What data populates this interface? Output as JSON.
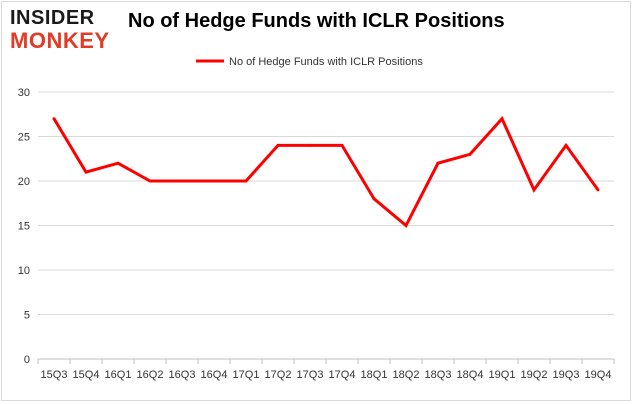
{
  "brand": {
    "logo_line1": "INSIDER",
    "logo_line2": "MONKEY",
    "logo_color_top": "#1a1a1a",
    "logo_color_bottom": "#e23b27"
  },
  "chart_data": {
    "type": "line",
    "title": "No of Hedge Funds with ICLR Positions",
    "categories": [
      "15Q3",
      "15Q4",
      "16Q1",
      "16Q2",
      "16Q3",
      "16Q4",
      "17Q1",
      "17Q2",
      "17Q3",
      "17Q4",
      "18Q1",
      "18Q2",
      "18Q3",
      "18Q4",
      "19Q1",
      "19Q2",
      "19Q3",
      "19Q4"
    ],
    "series": [
      {
        "name": "No of Hedge Funds with ICLR Positions",
        "color": "#ff0000",
        "values": [
          27,
          21,
          22,
          20,
          20,
          20,
          20,
          24,
          24,
          24,
          18,
          15,
          22,
          23,
          27,
          19,
          24,
          19
        ]
      }
    ],
    "ylim": [
      0,
      30
    ],
    "yticks": [
      0,
      5,
      10,
      15,
      20,
      25,
      30
    ],
    "grid": true,
    "legend_position": "top-center",
    "xlabel": "",
    "ylabel": ""
  }
}
